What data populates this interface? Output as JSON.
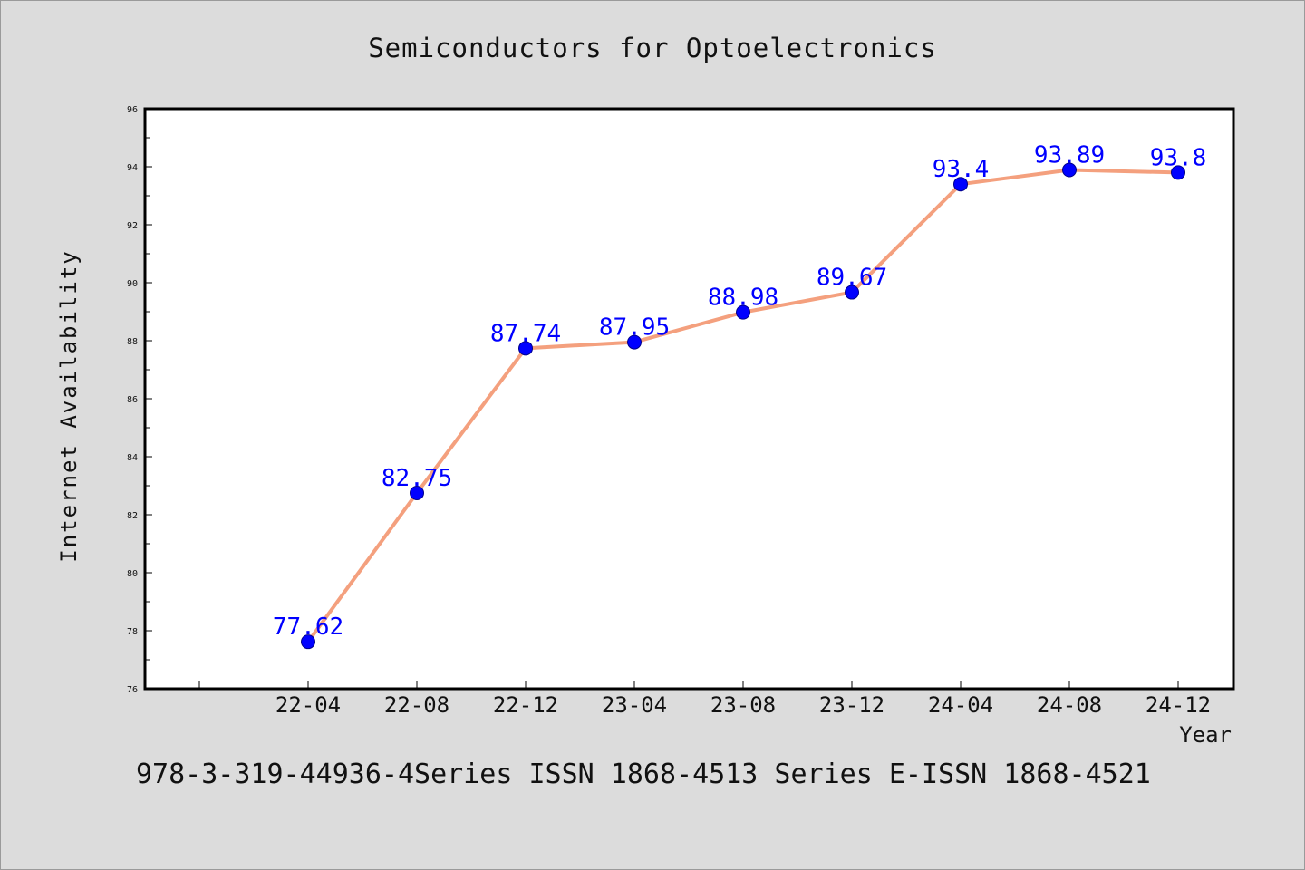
{
  "chart_data": {
    "type": "line",
    "title": "Semiconductors for Optoelectronics",
    "xlabel": "Year",
    "ylabel": "Internet Availability",
    "categories": [
      "22-04",
      "22-08",
      "22-12",
      "23-04",
      "23-08",
      "23-12",
      "24-04",
      "24-08",
      "24-12"
    ],
    "series": [
      {
        "values": [
          77.62,
          82.75,
          87.74,
          87.95,
          88.98,
          89.67,
          93.4,
          93.89,
          93.8
        ],
        "data_labels": [
          "77.62",
          "82.75",
          "87.74",
          "87.95",
          "88.98",
          "89.67",
          "93.4",
          "93.89",
          "93.8"
        ],
        "line_color": "#f4a07e",
        "marker_color": "#0000ff"
      }
    ],
    "ylim": [
      76,
      96
    ],
    "yticks": [
      76,
      78,
      80,
      82,
      84,
      86,
      88,
      90,
      92,
      94,
      96
    ],
    "grid": false,
    "legend": "none"
  },
  "footer": "978-3-319-44936-4Series ISSN 1868-4513 Series E-ISSN 1868-4521",
  "colors": {
    "background": "#dcdcdc",
    "plot_background": "#ffffff",
    "line": "#f4a07e",
    "marker": "#0000ff",
    "data_label": "#0000ff"
  }
}
